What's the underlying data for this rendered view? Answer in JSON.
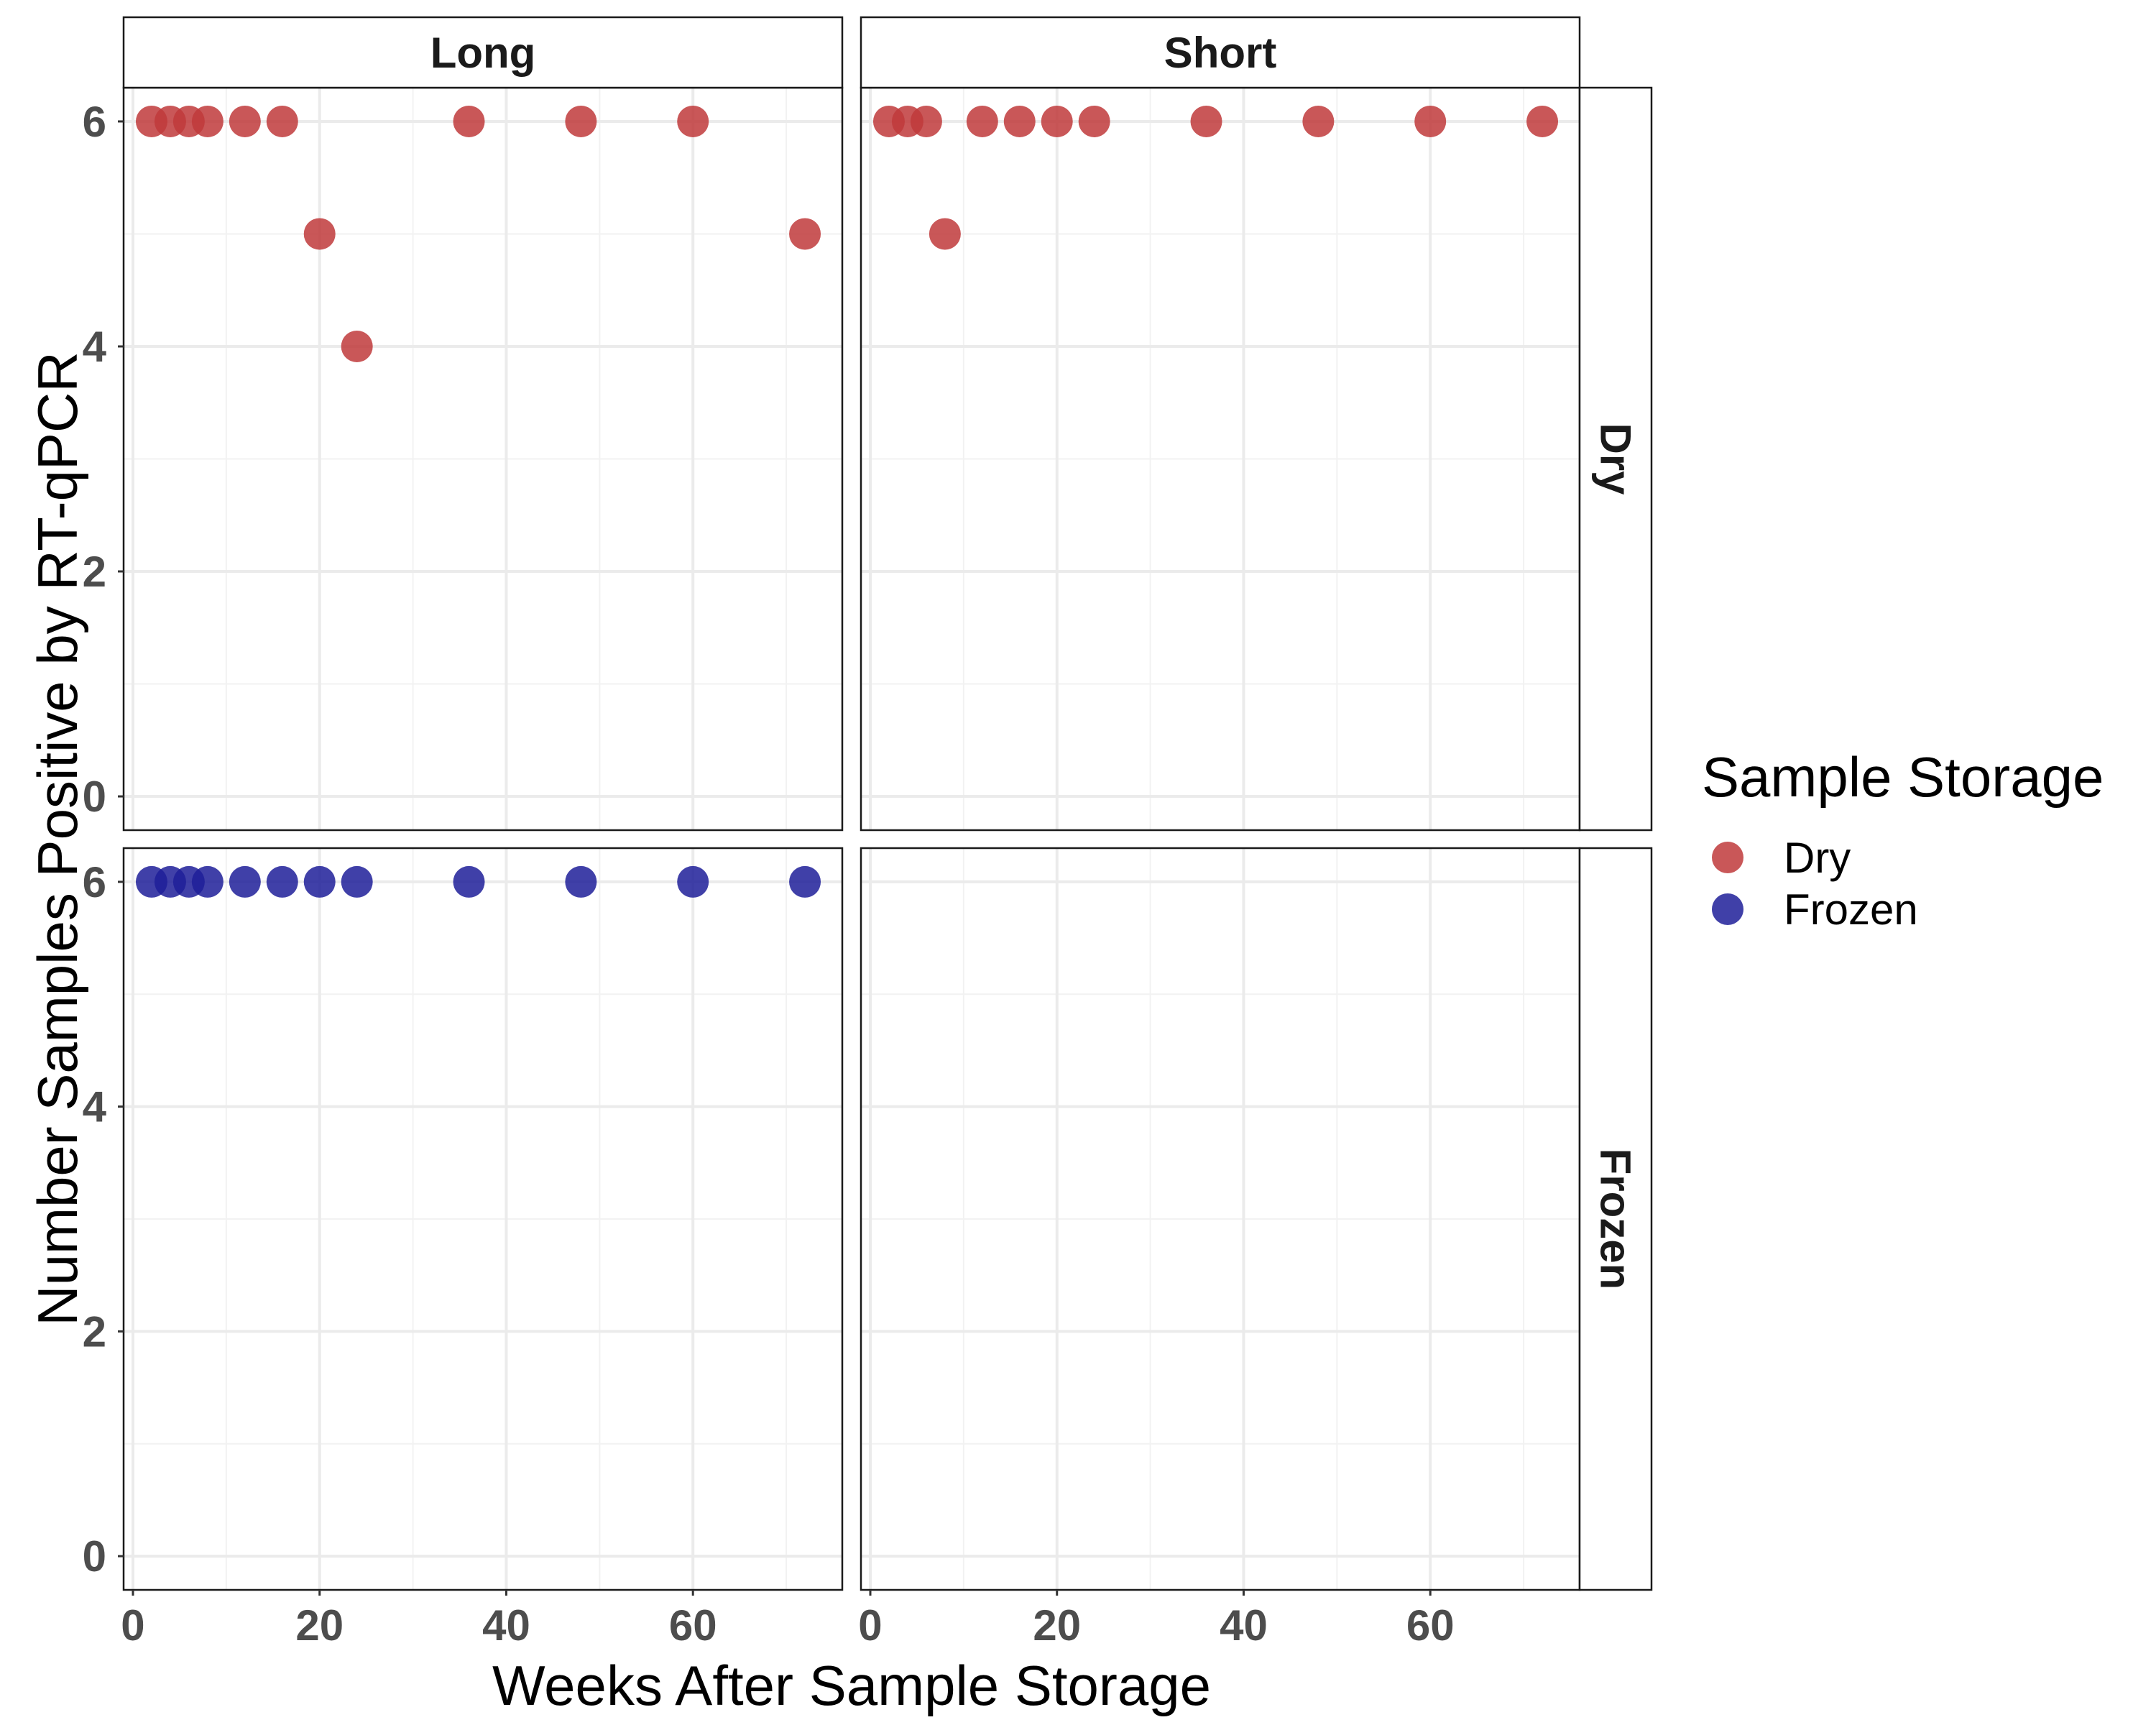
{
  "chart_data": {
    "type": "scatter",
    "facets": {
      "columns": [
        "Long",
        "Short"
      ],
      "rows": [
        "Dry",
        "Frozen"
      ]
    },
    "xlabel": "Weeks After Sample Storage",
    "ylabel": "Number Samples Positive by RT-qPCR",
    "xlim": [
      -1,
      76
    ],
    "ylim": [
      -0.3,
      6.3
    ],
    "xticks": [
      0,
      20,
      40,
      60
    ],
    "xtick_labels": [
      "0",
      "20",
      "40",
      "60"
    ],
    "yticks": [
      0,
      2,
      4,
      6
    ],
    "ytick_labels": [
      "0",
      "2",
      "4",
      "6"
    ],
    "grid": true,
    "legend": {
      "title": "Sample Storage",
      "position": "right",
      "entries": [
        {
          "label": "Dry",
          "color": "#c0393b"
        },
        {
          "label": "Frozen",
          "color": "#1f1f99"
        }
      ]
    },
    "panels": [
      {
        "column": "Long",
        "row": "Dry",
        "color": "#c0393b",
        "x": [
          2,
          4,
          6,
          8,
          12,
          16,
          20,
          24,
          36,
          48,
          60,
          72
        ],
        "y": [
          6,
          6,
          6,
          6,
          6,
          6,
          5,
          4,
          6,
          6,
          6,
          5
        ]
      },
      {
        "column": "Short",
        "row": "Dry",
        "color": "#c0393b",
        "x": [
          2,
          4,
          6,
          8,
          12,
          16,
          20,
          24,
          36,
          48,
          60,
          72
        ],
        "y": [
          6,
          6,
          6,
          5,
          6,
          6,
          6,
          6,
          6,
          6,
          6,
          6
        ]
      },
      {
        "column": "Long",
        "row": "Frozen",
        "color": "#1f1f99",
        "x": [
          2,
          4,
          6,
          8,
          12,
          16,
          20,
          24,
          36,
          48,
          60,
          72
        ],
        "y": [
          6,
          6,
          6,
          6,
          6,
          6,
          6,
          6,
          6,
          6,
          6,
          6
        ]
      },
      {
        "column": "Short",
        "row": "Frozen",
        "color": "#1f1f99",
        "x": [],
        "y": []
      }
    ]
  }
}
